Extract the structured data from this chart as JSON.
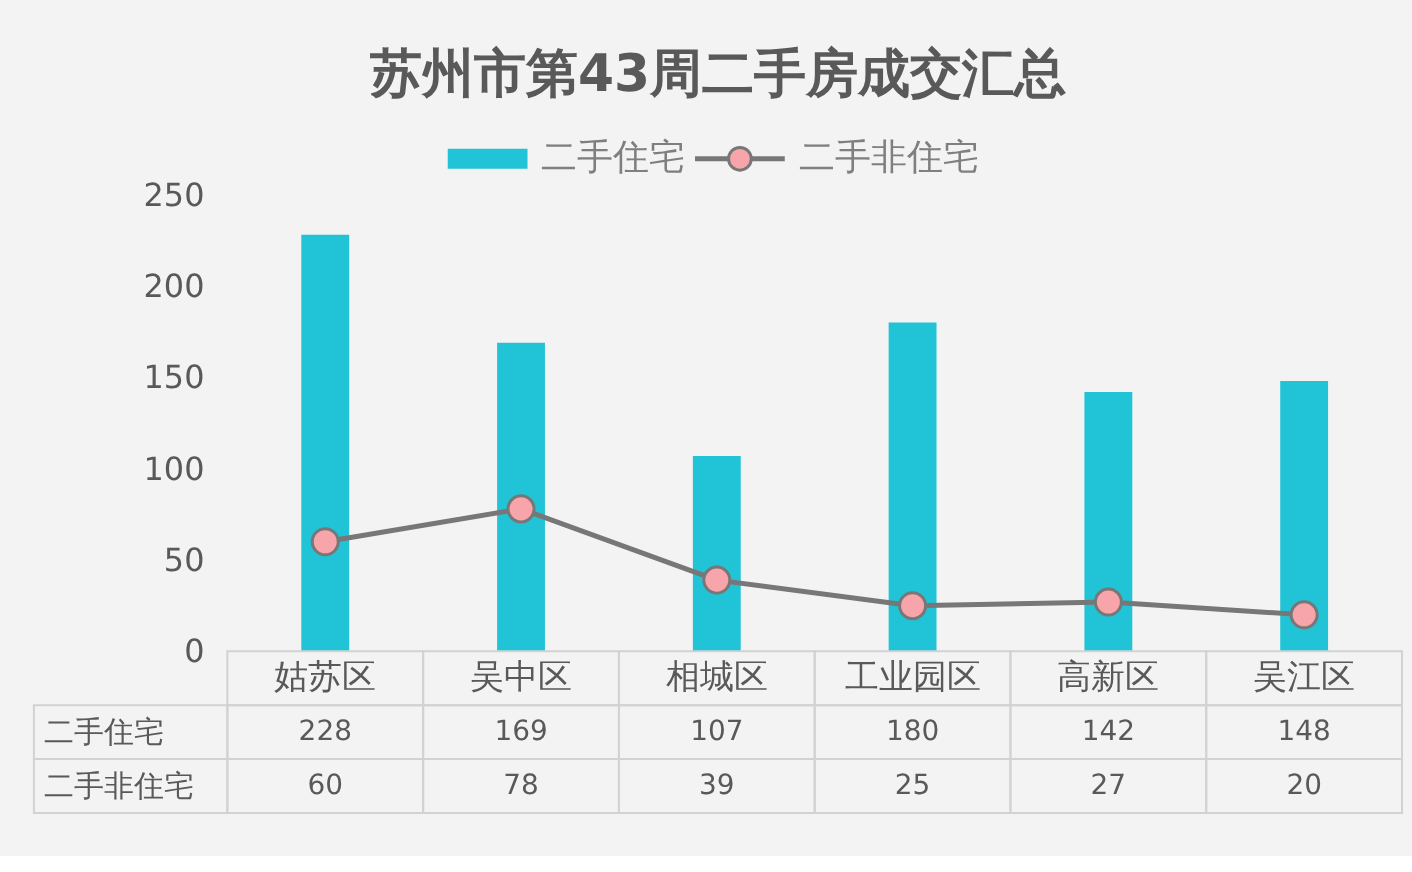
{
  "chart_data": {
    "type": "bar",
    "title": "苏州市第43周二手房成交汇总",
    "categories": [
      "姑苏区",
      "吴中区",
      "相城区",
      "工业园区",
      "高新区",
      "吴江区"
    ],
    "series": [
      {
        "name": "二手住宅",
        "color": "#21c4d6",
        "values": [
          228,
          169,
          107,
          180,
          142,
          148
        ]
      },
      {
        "name": "二手非住宅",
        "type": "line",
        "color": "#777777",
        "colors": [
          "#f7a5ab",
          "#f7a5ab",
          "#f7a5ab",
          "#f7a5ab",
          "#f7a5ab",
          "#f7a5ab"
        ],
        "values": [
          60,
          78,
          39,
          25,
          27,
          20
        ]
      }
    ],
    "ylim": [
      0,
      250
    ],
    "yticks": [
      0,
      50,
      100,
      150,
      200,
      250
    ],
    "legend": "top",
    "marker": "circle",
    "line_style": "solid",
    "data_labels": true
  }
}
